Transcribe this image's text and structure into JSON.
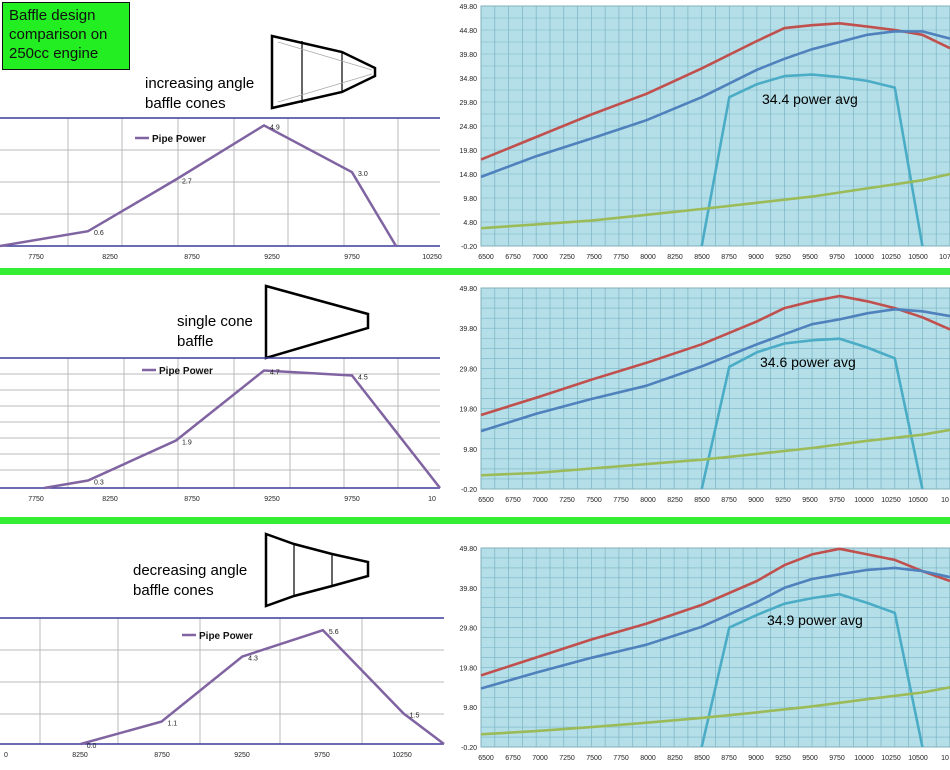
{
  "page": {
    "title_lines": [
      "Baffle design",
      "comparison on",
      "250cc engine"
    ],
    "sections": [
      {
        "label_lines": [
          "increasing angle",
          "baffle cones"
        ],
        "avg_text": "34.4 power avg"
      },
      {
        "label_lines": [
          "single cone",
          "baffle"
        ],
        "avg_text": "34.6 power avg"
      },
      {
        "label_lines": [
          "decreasing angle",
          "baffle cones"
        ],
        "avg_text": "34.9 power avg"
      }
    ]
  },
  "chart_data": [
    {
      "type": "line",
      "legend": "Pipe Power",
      "x_ticks": [
        "7750",
        "8250",
        "8750",
        "9250",
        "9750",
        "10250"
      ],
      "xlim": [
        7750,
        10250
      ],
      "ylim": [
        0,
        5.2
      ],
      "points": [
        [
          7750,
          0
        ],
        [
          8250,
          0.6
        ],
        [
          8750,
          2.7
        ],
        [
          9250,
          4.9
        ],
        [
          9750,
          3.0
        ],
        [
          10000,
          0
        ]
      ],
      "data_labels": [
        [
          8250,
          "0.6"
        ],
        [
          8750,
          "2.7"
        ],
        [
          9250,
          "4.9"
        ],
        [
          9750,
          "3.0"
        ]
      ],
      "color": "#8064a2"
    },
    {
      "type": "line",
      "y_ticks": [
        "49.80",
        "44.80",
        "39.80",
        "34.80",
        "29.80",
        "24.80",
        "19.80",
        "14.80",
        "9.80",
        "4.80",
        "-0.20"
      ],
      "ylim": [
        -0.2,
        49.8
      ],
      "x_ticks": [
        "6500",
        "6750",
        "7000",
        "7250",
        "7500",
        "7750",
        "8000",
        "8250",
        "8500",
        "8750",
        "9000",
        "9250",
        "9500",
        "9750",
        "10000",
        "10250",
        "10500",
        "107"
      ],
      "xlim": [
        6500,
        10750
      ],
      "series": [
        {
          "color": "#c0504d",
          "x": [
            6500,
            7000,
            7500,
            8000,
            8500,
            9000,
            9250,
            9500,
            9750,
            10000,
            10250,
            10500,
            10750
          ],
          "y": [
            17.8,
            22.5,
            27.2,
            31.5,
            36.8,
            42.5,
            45.2,
            45.8,
            46.2,
            45.5,
            44.8,
            43.8,
            41.0
          ]
        },
        {
          "color": "#4f81bd",
          "x": [
            6500,
            7000,
            7500,
            8000,
            8500,
            9000,
            9250,
            9500,
            9750,
            10000,
            10250,
            10500,
            10750
          ],
          "y": [
            14.2,
            18.5,
            22.2,
            26.0,
            30.8,
            36.5,
            38.8,
            40.8,
            42.3,
            43.8,
            44.5,
            44.5,
            43.0
          ]
        },
        {
          "color": "#4bacc6",
          "x": [
            8500,
            8750,
            9000,
            9250,
            9500,
            9750,
            10000,
            10250,
            10500
          ],
          "y": [
            -0.2,
            30.8,
            33.5,
            35.2,
            35.5,
            35.0,
            34.2,
            32.8,
            -0.2
          ]
        },
        {
          "color": "#9bbb59",
          "x": [
            6500,
            7000,
            7500,
            8000,
            8500,
            9000,
            9500,
            10000,
            10500,
            10750
          ],
          "y": [
            3.5,
            4.3,
            5.1,
            6.3,
            7.5,
            8.8,
            10.1,
            11.8,
            13.5,
            14.8
          ]
        }
      ]
    },
    {
      "type": "line",
      "legend": "Pipe Power",
      "x_ticks": [
        "7750",
        "8250",
        "8750",
        "9250",
        "9750",
        "10"
      ],
      "xlim": [
        7750,
        10250
      ],
      "ylim": [
        0,
        5.2
      ],
      "points": [
        [
          8000,
          0
        ],
        [
          8250,
          0.3
        ],
        [
          8750,
          1.9
        ],
        [
          9250,
          4.7
        ],
        [
          9750,
          4.5
        ],
        [
          10250,
          0
        ]
      ],
      "data_labels": [
        [
          8250,
          "0.3"
        ],
        [
          8750,
          "1.9"
        ],
        [
          9250,
          "4.7"
        ],
        [
          9750,
          "4.5"
        ]
      ],
      "color": "#8064a2"
    },
    {
      "type": "line",
      "y_ticks": [
        "49.80",
        "39.80",
        "29.80",
        "19.80",
        "9.80",
        "-0.20"
      ],
      "ylim": [
        -0.2,
        49.8
      ],
      "x_ticks": [
        "6500",
        "6750",
        "7000",
        "7250",
        "7500",
        "7750",
        "8000",
        "8250",
        "8500",
        "8750",
        "9000",
        "9250",
        "9500",
        "9750",
        "10000",
        "10250",
        "10500",
        "10"
      ],
      "xlim": [
        6500,
        10750
      ],
      "series": [
        {
          "color": "#c0504d",
          "x": [
            6500,
            7000,
            7500,
            8000,
            8500,
            9000,
            9250,
            9500,
            9750,
            10000,
            10250,
            10500,
            10750
          ],
          "y": [
            18.2,
            22.5,
            27.0,
            31.2,
            35.8,
            41.5,
            44.8,
            46.5,
            47.8,
            46.5,
            44.8,
            42.5,
            39.5
          ]
        },
        {
          "color": "#4f81bd",
          "x": [
            6500,
            7000,
            7500,
            8000,
            8500,
            9000,
            9250,
            9500,
            9750,
            10000,
            10250,
            10500,
            10750
          ],
          "y": [
            14.2,
            18.5,
            22.2,
            25.5,
            30.3,
            35.8,
            38.3,
            40.8,
            42.0,
            43.5,
            44.5,
            44.0,
            42.8
          ]
        },
        {
          "color": "#4bacc6",
          "x": [
            8500,
            8750,
            9000,
            9250,
            9500,
            9750,
            10000,
            10250,
            10500
          ],
          "y": [
            -0.2,
            30.2,
            33.8,
            36.0,
            36.8,
            37.2,
            35.0,
            32.3,
            -0.2
          ]
        },
        {
          "color": "#9bbb59",
          "x": [
            6500,
            7000,
            7500,
            8000,
            8500,
            9000,
            9500,
            10000,
            10500,
            10750
          ],
          "y": [
            3.2,
            3.8,
            4.9,
            6.0,
            7.1,
            8.5,
            10.0,
            11.8,
            13.3,
            14.5
          ]
        }
      ]
    },
    {
      "type": "line",
      "legend": "Pipe Power",
      "x_ticks": [
        "0",
        "8250",
        "8750",
        "9250",
        "9750",
        "10250"
      ],
      "xlim": [
        7750,
        10500
      ],
      "ylim": [
        0,
        6.2
      ],
      "points": [
        [
          8250,
          0
        ],
        [
          8750,
          1.1
        ],
        [
          9250,
          4.3
        ],
        [
          9750,
          5.6
        ],
        [
          10250,
          1.5
        ],
        [
          10500,
          0
        ]
      ],
      "data_labels": [
        [
          8250,
          "0.0"
        ],
        [
          8750,
          "1.1"
        ],
        [
          9250,
          "4.3"
        ],
        [
          9750,
          "5.6"
        ],
        [
          10250,
          "1.5"
        ]
      ],
      "color": "#8064a2"
    },
    {
      "type": "line",
      "y_ticks": [
        "49.80",
        "39.80",
        "29.80",
        "19.80",
        "9.80",
        "-0.20"
      ],
      "ylim": [
        -0.2,
        49.8
      ],
      "x_ticks": [
        "6500",
        "6750",
        "7000",
        "7250",
        "7500",
        "7750",
        "8000",
        "8250",
        "8500",
        "8750",
        "9000",
        "9250",
        "9500",
        "9750",
        "10000",
        "10250",
        "10500",
        "10"
      ],
      "xlim": [
        6500,
        10750
      ],
      "series": [
        {
          "color": "#c0504d",
          "x": [
            6500,
            7000,
            7500,
            8000,
            8500,
            9000,
            9250,
            9500,
            9750,
            10000,
            10250,
            10500,
            10750
          ],
          "y": [
            17.8,
            22.3,
            26.8,
            30.8,
            35.5,
            41.5,
            45.5,
            48.2,
            49.6,
            48.2,
            46.8,
            44.0,
            41.5
          ]
        },
        {
          "color": "#4f81bd",
          "x": [
            6500,
            7000,
            7500,
            8000,
            8500,
            9000,
            9250,
            9500,
            9750,
            10000,
            10250,
            10500,
            10750
          ],
          "y": [
            14.5,
            18.5,
            22.2,
            25.5,
            30.0,
            36.2,
            39.8,
            42.0,
            43.2,
            44.3,
            44.8,
            44.0,
            42.5
          ]
        },
        {
          "color": "#4bacc6",
          "x": [
            8500,
            8750,
            9000,
            9250,
            9500,
            9750,
            10000,
            10250,
            10500
          ],
          "y": [
            -0.2,
            29.8,
            33.0,
            35.8,
            37.2,
            38.2,
            36.0,
            33.5,
            -0.2
          ]
        },
        {
          "color": "#9bbb59",
          "x": [
            6500,
            7000,
            7500,
            8000,
            8500,
            9000,
            9500,
            10000,
            10500,
            10750
          ],
          "y": [
            3.0,
            3.8,
            4.8,
            5.9,
            7.1,
            8.5,
            10.0,
            11.8,
            13.5,
            14.8
          ]
        }
      ]
    }
  ]
}
